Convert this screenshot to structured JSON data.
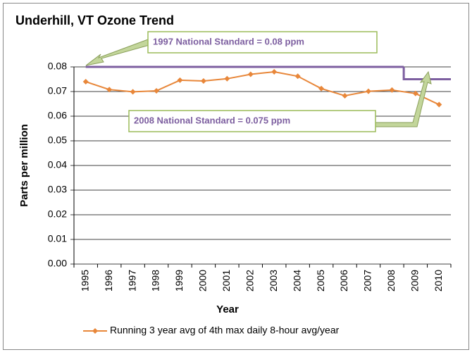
{
  "chart_data": {
    "type": "line",
    "title": "Underhill, VT Ozone Trend",
    "x_label": "Year",
    "y_label": "Parts per million",
    "categories": [
      "1995",
      "1996",
      "1997",
      "1998",
      "1999",
      "2000",
      "2001",
      "2002",
      "2003",
      "2004",
      "2005",
      "2006",
      "2007",
      "2008",
      "2009",
      "2010"
    ],
    "series": [
      {
        "name": "Running 3 year avg of 4th max daily 8-hour avg/year",
        "color": "#e8873a",
        "values": [
          0.074,
          0.0708,
          0.0699,
          0.0703,
          0.0746,
          0.0743,
          0.0752,
          0.077,
          0.078,
          0.0762,
          0.0712,
          0.0683,
          0.0701,
          0.0706,
          0.0692,
          0.0647
        ]
      }
    ],
    "standards": [
      {
        "text": "1997 National Standard = 0.08 ppm",
        "value": 0.08
      },
      {
        "text": "2008 National Standard = 0.075 ppm",
        "value": 0.075
      }
    ],
    "standard_color": "#7d5fa0",
    "ylim": [
      0,
      0.08
    ],
    "yticks": [
      {
        "value": 0,
        "label": "0.00"
      },
      0.01,
      0.02,
      0.03,
      0.04,
      0.05,
      0.06,
      0.07,
      0.08
    ],
    "grid": true
  }
}
